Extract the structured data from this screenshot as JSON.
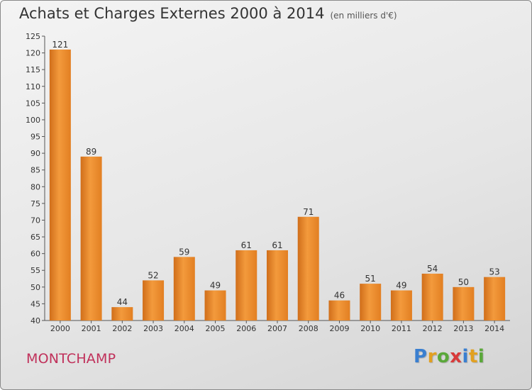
{
  "chart_data": {
    "type": "bar",
    "title": "Achats et Charges Externes 2000 à 2014",
    "subtitle": "(en milliers d'€)",
    "categories": [
      "2000",
      "2001",
      "2002",
      "2003",
      "2004",
      "2005",
      "2006",
      "2007",
      "2008",
      "2009",
      "2010",
      "2011",
      "2012",
      "2013",
      "2014"
    ],
    "values": [
      121,
      89,
      44,
      52,
      59,
      49,
      61,
      61,
      71,
      46,
      51,
      49,
      54,
      50,
      53
    ],
    "ylim": [
      40,
      125
    ],
    "yticks": [
      40,
      45,
      50,
      55,
      60,
      65,
      70,
      75,
      80,
      85,
      90,
      95,
      100,
      105,
      110,
      115,
      120,
      125
    ],
    "grid": false,
    "bar_color": "#f0922f"
  },
  "place_name": "MONTCHAMP",
  "logo": {
    "text": "Proxiti",
    "letters": [
      "P",
      "r",
      "o",
      "x",
      "i",
      "t",
      "i"
    ],
    "colors": [
      "#3a7fd0",
      "#e2a020",
      "#5aa83a",
      "#d83a3a",
      "#3a7fd0",
      "#e2a020",
      "#5aa83a"
    ]
  }
}
